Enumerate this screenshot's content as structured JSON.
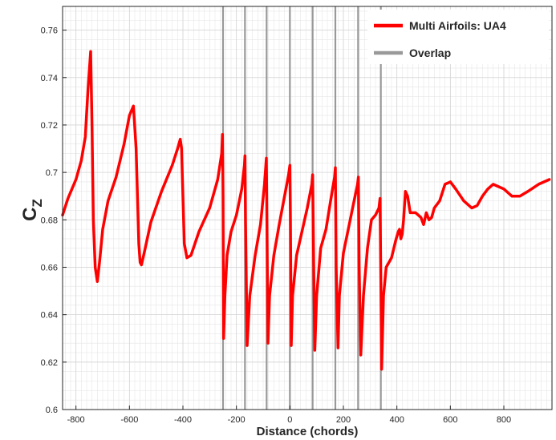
{
  "chart_data": {
    "type": "line",
    "title": "",
    "xlabel": "Distance (chords)",
    "ylabel_main": "C",
    "ylabel_sub": "Z",
    "xlim": [
      -850,
      980
    ],
    "ylim": [
      0.6,
      0.77
    ],
    "x_ticks": [
      -800,
      -600,
      -400,
      -200,
      0,
      200,
      400,
      600,
      800
    ],
    "x_tick_labels": [
      "-800",
      "-600",
      "-400",
      "-200",
      "0",
      "200",
      "400",
      "600",
      "800"
    ],
    "y_ticks": [
      0.6,
      0.62,
      0.64,
      0.66,
      0.68,
      0.7,
      0.72,
      0.74,
      0.76
    ],
    "y_tick_labels": [
      "0.6",
      "0.62",
      "0.64",
      "0.66",
      "0.68",
      "0.7",
      "0.72",
      "0.74",
      "0.76"
    ],
    "grid": "minor",
    "legend_position": "top-right",
    "colors": {
      "series": "#ff0000",
      "overlap": "#999999",
      "grid": "#e6e6e6"
    },
    "overlap_lines": {
      "name": "Overlap",
      "x": [
        -250,
        -168,
        -87,
        0,
        85,
        170,
        255,
        340
      ]
    },
    "series": [
      {
        "name": "Multi Airfoils: UA4",
        "x": [
          -850,
          -830,
          -800,
          -780,
          -765,
          -755,
          -745,
          -740,
          -735,
          -728,
          -720,
          -712,
          -700,
          -680,
          -650,
          -620,
          -600,
          -585,
          -575,
          -570,
          -565,
          -560,
          -555,
          -545,
          -520,
          -480,
          -440,
          -420,
          -410,
          -405,
          -400,
          -395,
          -385,
          -370,
          -340,
          -300,
          -270,
          -255,
          -252,
          -250,
          -248,
          -243,
          -235,
          -220,
          -200,
          -180,
          -170,
          -168,
          -166,
          -160,
          -150,
          -130,
          -110,
          -95,
          -88,
          -86,
          -82,
          -76,
          -60,
          -40,
          -20,
          -5,
          0,
          2,
          5,
          10,
          25,
          45,
          65,
          82,
          85,
          88,
          93,
          100,
          115,
          135,
          155,
          167,
          170,
          173,
          180,
          185,
          200,
          220,
          240,
          253,
          256,
          259,
          265,
          275,
          290,
          305,
          320,
          333,
          337,
          340,
          343,
          350,
          360,
          380,
          395,
          405,
          410,
          415,
          420,
          425,
          432,
          440,
          450,
          470,
          490,
          500,
          510,
          520,
          530,
          540,
          560,
          580,
          600,
          620,
          650,
          680,
          700,
          720,
          740,
          760,
          780,
          800,
          830,
          860,
          890,
          930,
          970
        ],
        "y": [
          0.682,
          0.689,
          0.697,
          0.705,
          0.715,
          0.735,
          0.751,
          0.72,
          0.68,
          0.66,
          0.654,
          0.662,
          0.676,
          0.688,
          0.698,
          0.712,
          0.724,
          0.728,
          0.71,
          0.69,
          0.67,
          0.662,
          0.661,
          0.666,
          0.679,
          0.692,
          0.703,
          0.71,
          0.714,
          0.71,
          0.69,
          0.67,
          0.664,
          0.665,
          0.675,
          0.685,
          0.697,
          0.708,
          0.716,
          0.69,
          0.63,
          0.648,
          0.665,
          0.675,
          0.682,
          0.693,
          0.703,
          0.707,
          0.68,
          0.627,
          0.648,
          0.665,
          0.678,
          0.695,
          0.706,
          0.68,
          0.628,
          0.648,
          0.665,
          0.678,
          0.69,
          0.699,
          0.703,
          0.68,
          0.627,
          0.648,
          0.665,
          0.675,
          0.685,
          0.695,
          0.699,
          0.67,
          0.625,
          0.648,
          0.668,
          0.676,
          0.69,
          0.698,
          0.702,
          0.66,
          0.626,
          0.648,
          0.666,
          0.677,
          0.688,
          0.695,
          0.698,
          0.66,
          0.623,
          0.648,
          0.668,
          0.68,
          0.682,
          0.685,
          0.689,
          0.655,
          0.617,
          0.648,
          0.66,
          0.664,
          0.671,
          0.675,
          0.676,
          0.672,
          0.674,
          0.68,
          0.692,
          0.69,
          0.683,
          0.683,
          0.681,
          0.678,
          0.683,
          0.68,
          0.681,
          0.685,
          0.688,
          0.695,
          0.696,
          0.693,
          0.688,
          0.685,
          0.686,
          0.69,
          0.693,
          0.695,
          0.694,
          0.693,
          0.69,
          0.69,
          0.692,
          0.695,
          0.697
        ]
      }
    ]
  }
}
